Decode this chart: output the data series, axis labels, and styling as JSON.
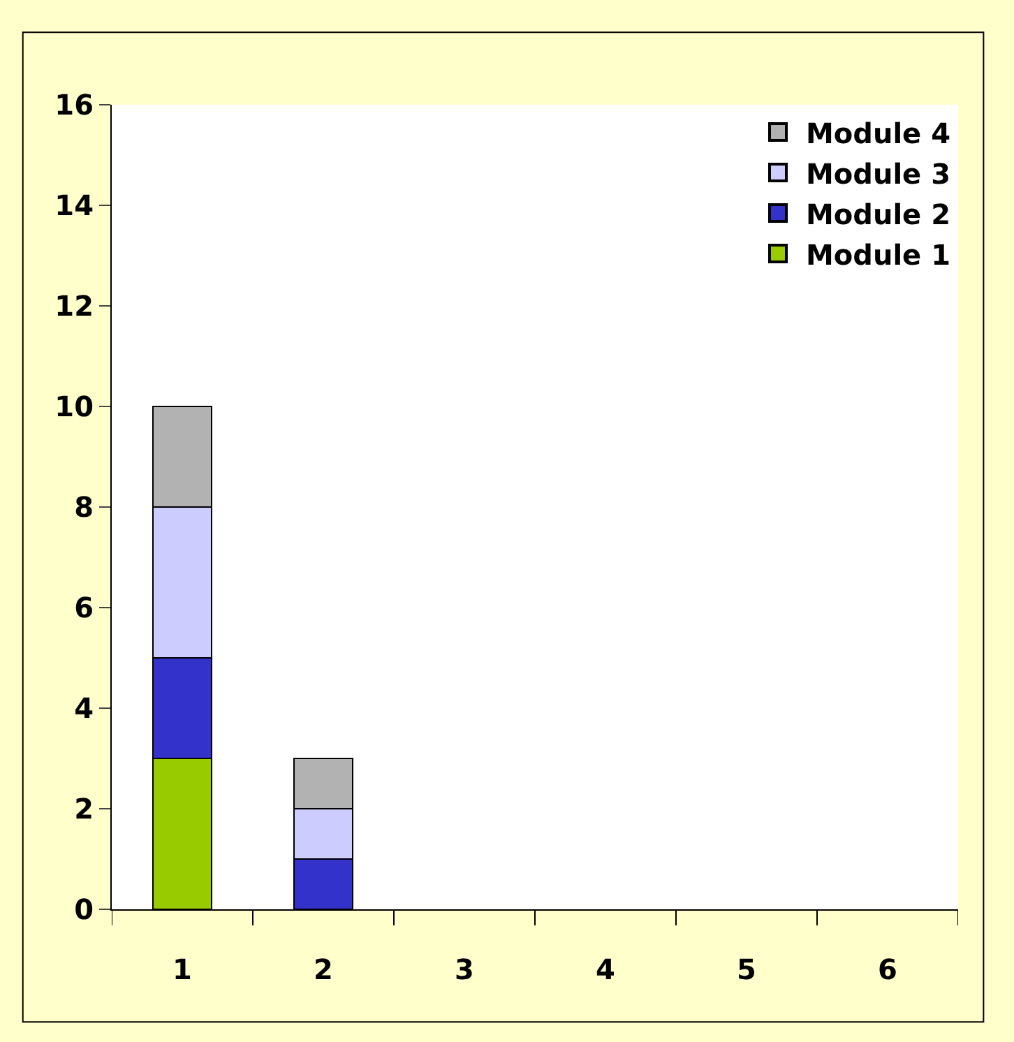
{
  "chart_data": {
    "type": "bar",
    "stacked": true,
    "categories": [
      "1",
      "2",
      "3",
      "4",
      "5",
      "6"
    ],
    "series": [
      {
        "name": "Module 1",
        "color": "#99cc00",
        "values": [
          3,
          0,
          0,
          0,
          0,
          0
        ]
      },
      {
        "name": "Module 2",
        "color": "#3333cc",
        "values": [
          2,
          1,
          0,
          0,
          0,
          0
        ]
      },
      {
        "name": "Module 3",
        "color": "#ccccff",
        "values": [
          3,
          1,
          0,
          0,
          0,
          0
        ]
      },
      {
        "name": "Module 4",
        "color": "#b2b2b2",
        "values": [
          2,
          1,
          0,
          0,
          0,
          0
        ]
      }
    ],
    "ylim": [
      0,
      16
    ],
    "yticks": [
      0,
      2,
      4,
      6,
      8,
      10,
      12,
      14,
      16
    ],
    "legend": "top right"
  }
}
